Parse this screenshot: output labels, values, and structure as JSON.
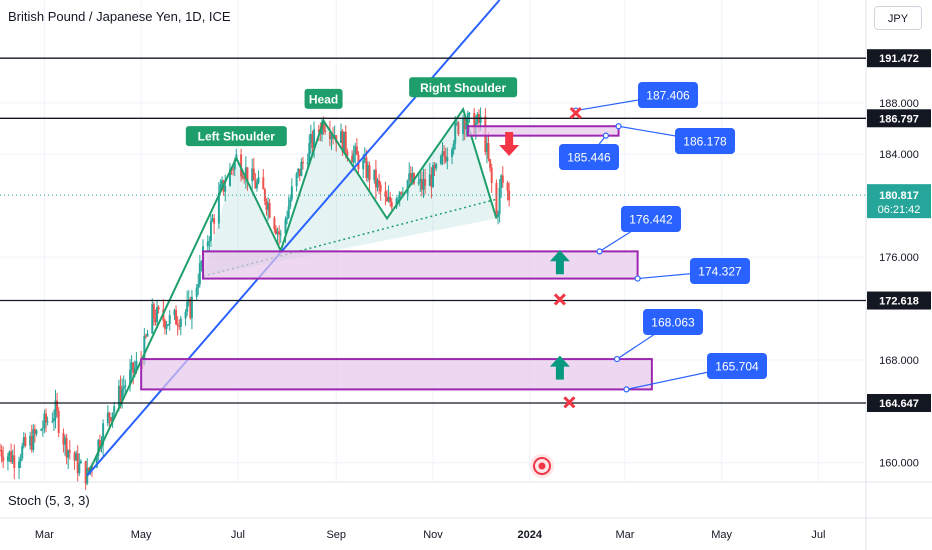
{
  "header": {
    "title": "British Pound / Japanese Yen, 1D, ICE",
    "currency_button": "JPY"
  },
  "indicator": {
    "label": "Stoch (5, 3, 3)"
  },
  "colors": {
    "up": "#26a69a",
    "down": "#ef5350",
    "pattern": "#1e9e6b",
    "trendline": "#2962ff",
    "zone_fill": "#e7c6ea",
    "zone_border": "#9c27b0",
    "label_bg": "#2962ff",
    "last_price_bg": "#26a69a",
    "cross": "#f23645"
  },
  "chart_data": {
    "type": "candlestick",
    "symbol": "GBPJPY",
    "timeframe": "1D",
    "ylim": [
      158.5,
      196
    ],
    "xlim": [
      "2023-02-01",
      "2024-07-31"
    ],
    "x_ticks": [
      {
        "date": "2023-03-01",
        "label": "Mar"
      },
      {
        "date": "2023-05-01",
        "label": "May"
      },
      {
        "date": "2023-07-01",
        "label": "Jul"
      },
      {
        "date": "2023-09-01",
        "label": "Sep"
      },
      {
        "date": "2023-11-01",
        "label": "Nov"
      },
      {
        "date": "2024-01-01",
        "label": "2024"
      },
      {
        "date": "2024-03-01",
        "label": "Mar"
      },
      {
        "date": "2024-05-01",
        "label": "May"
      },
      {
        "date": "2024-07-01",
        "label": "Jul"
      }
    ],
    "y_ticks": [
      160.0,
      168.0,
      176.0,
      184.0,
      188.0
    ],
    "last_price": {
      "value": 180.817,
      "countdown": "06:21:42"
    },
    "price_path": [
      {
        "date": "2023-02-01",
        "price": 161.0
      },
      {
        "date": "2023-02-10",
        "price": 160.4
      },
      {
        "date": "2023-02-20",
        "price": 161.6
      },
      {
        "date": "2023-03-01",
        "price": 163.0
      },
      {
        "date": "2023-03-08",
        "price": 164.0
      },
      {
        "date": "2023-03-14",
        "price": 161.5
      },
      {
        "date": "2023-03-22",
        "price": 159.8
      },
      {
        "date": "2023-03-28",
        "price": 159.0
      },
      {
        "date": "2023-04-08",
        "price": 163.0
      },
      {
        "date": "2023-04-20",
        "price": 166.0
      },
      {
        "date": "2023-05-01",
        "price": 168.0
      },
      {
        "date": "2023-05-08",
        "price": 171.5
      },
      {
        "date": "2023-05-20",
        "price": 171.0
      },
      {
        "date": "2023-06-01",
        "price": 172.0
      },
      {
        "date": "2023-06-12",
        "price": 177.5
      },
      {
        "date": "2023-06-20",
        "price": 181.0
      },
      {
        "date": "2023-06-30",
        "price": 183.7
      },
      {
        "date": "2023-07-10",
        "price": 182.0
      },
      {
        "date": "2023-07-18",
        "price": 180.8
      },
      {
        "date": "2023-07-28",
        "price": 177.5
      },
      {
        "date": "2023-08-05",
        "price": 181.5
      },
      {
        "date": "2023-08-15",
        "price": 184.5
      },
      {
        "date": "2023-08-24",
        "price": 186.6
      },
      {
        "date": "2023-09-05",
        "price": 185.0
      },
      {
        "date": "2023-09-15",
        "price": 183.5
      },
      {
        "date": "2023-09-25",
        "price": 182.0
      },
      {
        "date": "2023-10-03",
        "price": 180.0
      },
      {
        "date": "2023-10-15",
        "price": 182.0
      },
      {
        "date": "2023-10-25",
        "price": 181.5
      },
      {
        "date": "2023-11-03",
        "price": 182.5
      },
      {
        "date": "2023-11-12",
        "price": 185.0
      },
      {
        "date": "2023-11-20",
        "price": 187.0
      },
      {
        "date": "2023-11-25",
        "price": 186.2
      },
      {
        "date": "2023-12-02",
        "price": 186.5
      },
      {
        "date": "2023-12-07",
        "price": 182.5
      },
      {
        "date": "2023-12-11",
        "price": 179.0
      },
      {
        "date": "2023-12-14",
        "price": 182.0
      },
      {
        "date": "2023-12-19",
        "price": 180.8
      }
    ],
    "horizontal_levels": [
      191.472,
      186.797,
      172.618,
      164.647
    ],
    "zones": [
      {
        "start": "2023-11-23",
        "end": "2024-02-26",
        "top": 186.178,
        "bottom": 185.446
      },
      {
        "start": "2023-06-09",
        "end": "2024-03-09",
        "top": 176.442,
        "bottom": 174.327
      },
      {
        "start": "2023-05-01",
        "end": "2024-03-18",
        "top": 168.063,
        "bottom": 165.704
      }
    ],
    "level_labels": [
      187.406,
      186.178,
      185.446,
      176.442,
      174.327,
      168.063,
      165.704
    ],
    "pattern": {
      "name": "Head and Shoulders",
      "labels": [
        "Left Shoulder",
        "Head",
        "Right Shoulder"
      ],
      "points": [
        {
          "date": "2023-03-28",
          "price": 159.0
        },
        {
          "date": "2023-06-30",
          "price": 183.7
        },
        {
          "date": "2023-07-28",
          "price": 176.5
        },
        {
          "date": "2023-08-24",
          "price": 186.6
        },
        {
          "date": "2023-10-03",
          "price": 179.0
        },
        {
          "date": "2023-11-20",
          "price": 187.5
        },
        {
          "date": "2023-12-11",
          "price": 179.0
        }
      ],
      "neckline": [
        {
          "date": "2023-06-09",
          "price": 174.5
        },
        {
          "date": "2023-12-11",
          "price": 180.5
        }
      ]
    },
    "trendline": [
      {
        "date": "2023-03-28",
        "price": 159.0
      },
      {
        "date": "2023-12-13",
        "price": 196.0
      }
    ],
    "arrows": [
      {
        "date": "2023-12-19",
        "price": 184.8,
        "direction": "down"
      },
      {
        "date": "2024-01-20",
        "price": 175.6,
        "direction": "up"
      },
      {
        "date": "2024-01-20",
        "price": 167.4,
        "direction": "up"
      }
    ],
    "crosses": [
      {
        "date": "2024-01-30",
        "price": 187.2
      },
      {
        "date": "2024-01-20",
        "price": 172.7
      },
      {
        "date": "2024-01-26",
        "price": 164.7
      }
    ]
  }
}
